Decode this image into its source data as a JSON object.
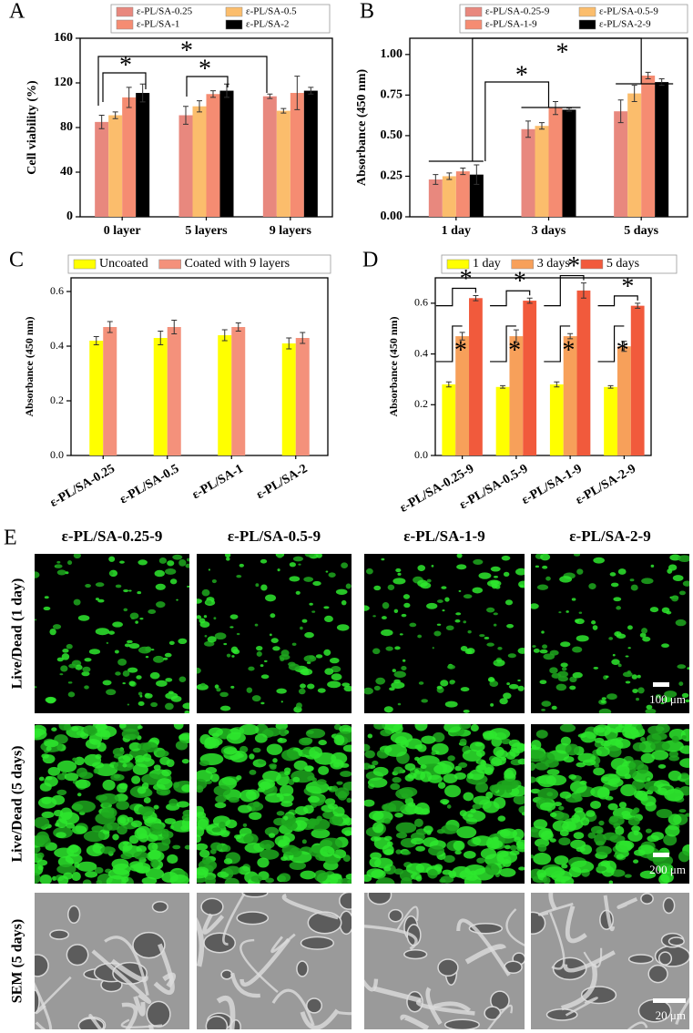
{
  "chart_data": [
    {
      "type": "bar",
      "panel_label": "A",
      "ylabel": "Cell viability (%)",
      "categories": [
        "0 layer",
        "5 layers",
        "9 layers"
      ],
      "series": [
        {
          "name": "ε-PL/SA-0.25",
          "color": "#e8887e",
          "values": [
            85,
            91,
            108
          ],
          "errors": [
            6,
            8,
            2
          ]
        },
        {
          "name": "ε-PL/SA-0.5",
          "color": "#fbbd6c",
          "values": [
            91,
            99,
            95
          ],
          "errors": [
            3,
            5,
            2
          ]
        },
        {
          "name": "ε-PL/SA-1",
          "color": "#f58c72",
          "values": [
            107,
            110,
            111
          ],
          "errors": [
            9,
            3,
            15
          ]
        },
        {
          "name": "ε-PL/SA-2",
          "color": "#000000",
          "values": [
            111,
            113,
            113
          ],
          "errors": [
            8,
            6,
            3
          ]
        }
      ],
      "ylim": [
        0,
        160
      ],
      "yticks": [
        0,
        40,
        80,
        120,
        160
      ],
      "annotations": [
        "*",
        "*",
        "*"
      ]
    },
    {
      "type": "bar",
      "panel_label": "B",
      "ylabel": "Absorbance (450 nm)",
      "categories": [
        "1 day",
        "3 days",
        "5 days"
      ],
      "series": [
        {
          "name": "ε-PL/SA-0.25-9",
          "color": "#e8887e",
          "values": [
            0.23,
            0.54,
            0.65
          ],
          "errors": [
            0.03,
            0.05,
            0.07
          ]
        },
        {
          "name": "ε-PL/SA-0.5-9",
          "color": "#fbbd6c",
          "values": [
            0.25,
            0.56,
            0.76
          ],
          "errors": [
            0.02,
            0.02,
            0.05
          ]
        },
        {
          "name": "ε-PL/SA-1-9",
          "color": "#f58c72",
          "values": [
            0.28,
            0.67,
            0.87
          ],
          "errors": [
            0.02,
            0.04,
            0.02
          ]
        },
        {
          "name": "ε-PL/SA-2-9",
          "color": "#000000",
          "values": [
            0.26,
            0.66,
            0.83
          ],
          "errors": [
            0.06,
            0.01,
            0.02
          ]
        }
      ],
      "ylim": [
        0,
        1.1
      ],
      "yticks": [
        {
          "value": 0,
          "label": "0.00"
        },
        0.25,
        {
          "value": 0.5,
          "label": "0.50"
        },
        0.75,
        {
          "value": 1,
          "label": "1.00"
        }
      ],
      "annotations": [
        "*",
        "*"
      ]
    },
    {
      "type": "bar",
      "panel_label": "C",
      "ylabel": "Absorbance (450 nm)",
      "rotated_xlabels": true,
      "categories": [
        "ε-PL/SA-0.25",
        "ε-PL/SA-0.5",
        "ε-PL/SA-1",
        "ε-PL/SA-2"
      ],
      "series": [
        {
          "name": "Uncoated",
          "color": "#ffff00",
          "values": [
            0.42,
            0.43,
            0.44,
            0.41
          ],
          "errors": [
            0.015,
            0.025,
            0.02,
            0.02
          ]
        },
        {
          "name": "Coated with 9 layers",
          "color": "#f4917b",
          "values": [
            0.47,
            0.47,
            0.47,
            0.43
          ],
          "errors": [
            0.02,
            0.025,
            0.015,
            0.02
          ]
        }
      ],
      "ylim": [
        0,
        0.65
      ],
      "yticks": [
        {
          "value": 0,
          "label": "0.0"
        },
        0.2,
        0.4,
        0.6
      ]
    },
    {
      "type": "bar",
      "panel_label": "D",
      "ylabel": "Absorbance (450 nm)",
      "rotated_xlabels": true,
      "categories": [
        "ε-PL/SA-0.25-9",
        "ε-PL/SA-0.5-9",
        "ε-PL/SA-1-9",
        "ε-PL/SA-2-9"
      ],
      "series": [
        {
          "name": "1 day",
          "color": "#ffff00",
          "values": [
            0.28,
            0.27,
            0.28,
            0.27
          ],
          "errors": [
            0.01,
            0.005,
            0.01,
            0.005
          ]
        },
        {
          "name": "3 days",
          "color": "#f7a05a",
          "values": [
            0.47,
            0.47,
            0.47,
            0.43
          ],
          "errors": [
            0.015,
            0.025,
            0.01,
            0.02
          ]
        },
        {
          "name": "5 days",
          "color": "#f15a3c",
          "values": [
            0.62,
            0.61,
            0.65,
            0.59
          ],
          "errors": [
            0.01,
            0.01,
            0.03,
            0.01
          ]
        }
      ],
      "ylim": [
        0,
        0.7
      ],
      "yticks": [
        {
          "value": 0,
          "label": "0.0"
        },
        0.2,
        0.4,
        0.6
      ],
      "annotations": [
        "*",
        "*",
        "*",
        "*",
        "*",
        "*",
        "*",
        "*"
      ]
    }
  ],
  "image_panel": {
    "panel_label": "E",
    "columns": [
      "ε-PL/SA-0.25-9",
      "ε-PL/SA-0.5-9",
      "ε-PL/SA-1-9",
      "ε-PL/SA-2-9"
    ],
    "rows": [
      "Live/Dead (1 day)",
      "Live/Dead (5 days)",
      "SEM (5 days)"
    ],
    "scale_bars": [
      "100 μm",
      "200 μm",
      "20 μm"
    ]
  }
}
